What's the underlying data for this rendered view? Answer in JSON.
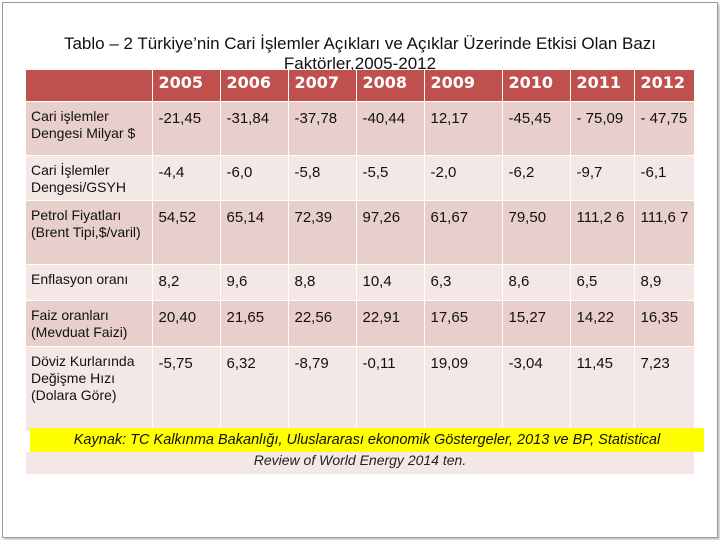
{
  "title": {
    "line1": "Tablo – 2 Türkiye’nin Cari İşlemler Açıkları ve Açıklar Üzerinde Etkisi Olan  Bazı",
    "line2": "Faktörler,2005-2012"
  },
  "table": {
    "years": [
      "2005",
      "2006",
      "2007",
      "2008",
      "2009",
      "2010",
      "2011",
      "2012"
    ],
    "rows": [
      {
        "label": "Cari işlemler Dengesi Milyar $",
        "values": [
          "-21,45",
          "-31,84",
          "-37,78",
          "-40,44",
          "12,17",
          "-45,45",
          "- 75,09",
          "- 47,75"
        ]
      },
      {
        "label": "Cari İşlemler Dengesi/GSYH",
        "values": [
          "-4,4",
          "-6,0",
          "-5,8",
          "-5,5",
          "-2,0",
          "-6,2",
          "-9,7",
          "-6,1"
        ]
      },
      {
        "label": "Petrol Fiyatları (Brent Tipi,$/varil)",
        "values": [
          "54,52",
          "65,14",
          "72,39",
          "97,26",
          "61,67",
          "79,50",
          "111,2 6",
          "111,6 7"
        ]
      },
      {
        "label": "Enflasyon oranı",
        "values": [
          "8,2",
          "9,6",
          "8,8",
          "10,4",
          "6,3",
          "8,6",
          "6,5",
          "8,9"
        ]
      },
      {
        "label": "Faiz oranları (Mevduat Faizi)",
        "values": [
          "20,40",
          "21,65",
          "22,56",
          "22,91",
          "17,65",
          "15,27",
          "14,22",
          "16,35"
        ]
      },
      {
        "label": "Döviz Kurlarında Değişme Hızı (Dolara Göre)",
        "values": [
          "-5,75",
          "6,32",
          "-8,79",
          "-0,11",
          "19,09",
          "-3,04",
          "11,45",
          "7,23"
        ]
      }
    ]
  },
  "source": {
    "line1": "Kaynak: TC Kalkınma Bakanlığı, Uluslararası ekonomik Göstergeler, 2013 ve BP, Statistical",
    "line2": "Review of World Energy 2014 ten."
  }
}
